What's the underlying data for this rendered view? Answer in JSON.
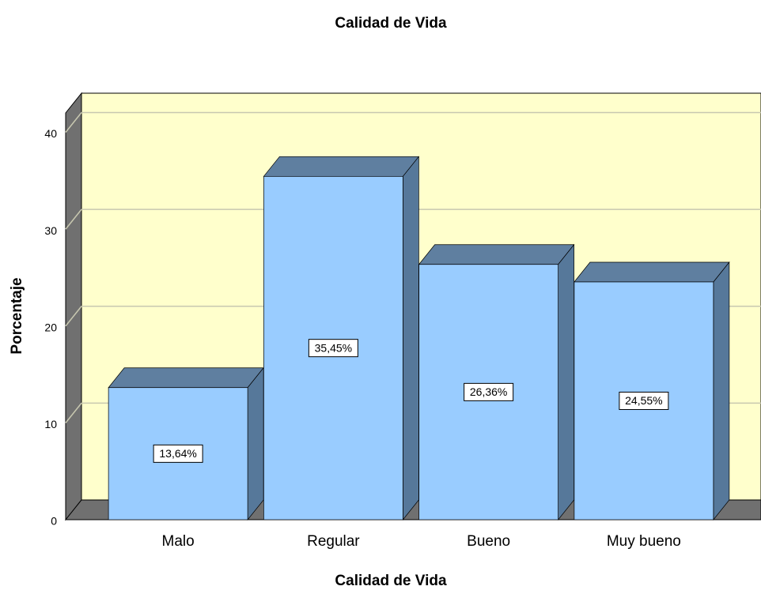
{
  "chart_data": {
    "type": "bar",
    "title": "Calidad de Vida",
    "x_label": "Calidad de Vida",
    "y_label": "Porcentaje",
    "categories": [
      "Malo",
      "Regular",
      "Bueno",
      "Muy bueno"
    ],
    "values": [
      13.64,
      35.45,
      26.36,
      24.55
    ],
    "value_labels": [
      "13,64%",
      "35,45%",
      "26,36%",
      "24,55%"
    ],
    "color": "#99ccff",
    "ylim": [
      0,
      42
    ],
    "yticks": [
      0,
      10,
      20,
      30,
      40
    ],
    "grid": true
  }
}
